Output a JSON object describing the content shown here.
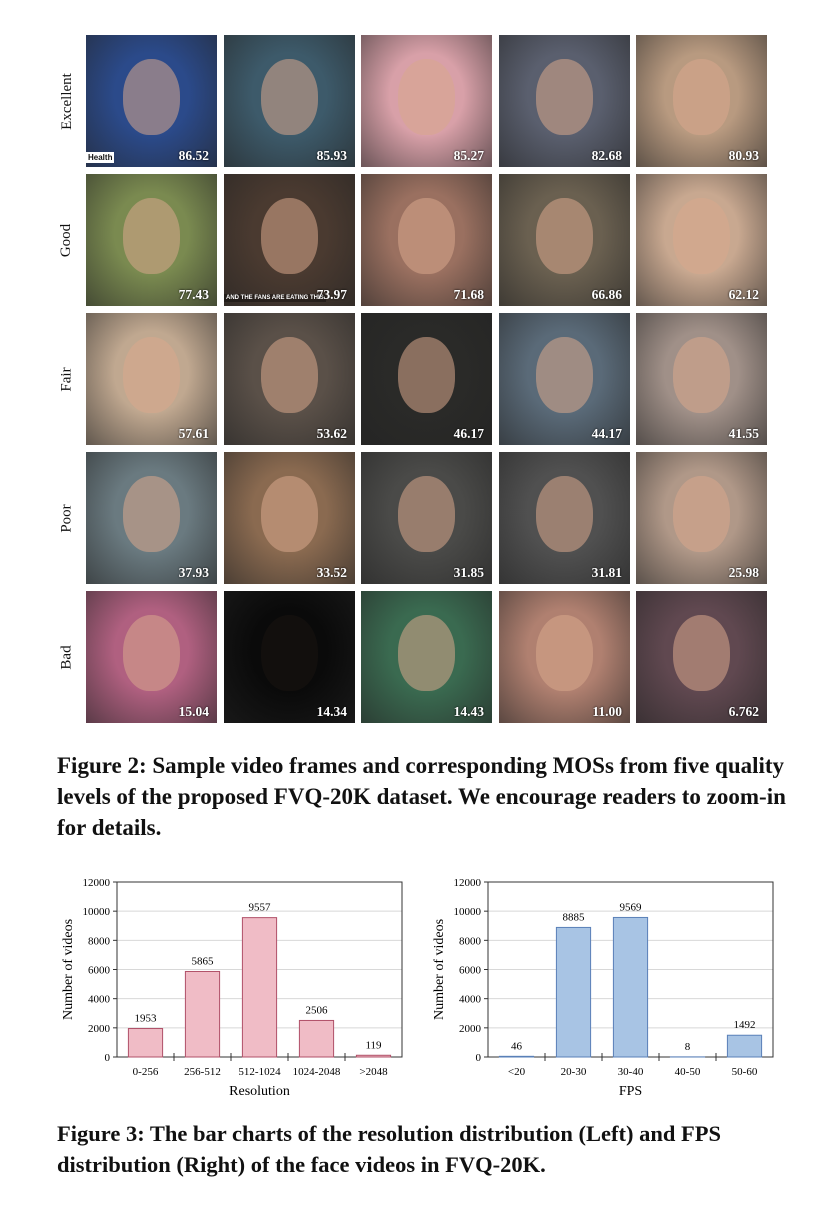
{
  "figure2": {
    "rows": [
      {
        "label": "Excellent",
        "scores": [
          "86.52",
          "85.93",
          "85.27",
          "82.68",
          "80.93"
        ],
        "colors": [
          "#2b4a8a",
          "#3d5a6a",
          "#d8a0a8",
          "#5a5f6e",
          "#b89a80"
        ]
      },
      {
        "label": "Good",
        "scores": [
          "77.43",
          "73.97",
          "71.68",
          "66.86",
          "62.12"
        ],
        "colors": [
          "#7a8a50",
          "#4a3a30",
          "#9a7060",
          "#6a6050",
          "#c8a890"
        ]
      },
      {
        "label": "Fair",
        "scores": [
          "57.61",
          "53.62",
          "46.17",
          "44.17",
          "41.55"
        ],
        "colors": [
          "#c0a890",
          "#5a5048",
          "#2a2a28",
          "#5a6a78",
          "#a09088"
        ]
      },
      {
        "label": "Poor",
        "scores": [
          "37.93",
          "33.52",
          "31.85",
          "31.81",
          "25.98"
        ],
        "colors": [
          "#6a7a80",
          "#8a6a50",
          "#4a4a48",
          "#505050",
          "#b09888"
        ]
      },
      {
        "label": "Bad",
        "scores": [
          "15.04",
          "14.34",
          "14.43",
          "11.00",
          "6.762"
        ],
        "colors": [
          "#b06080",
          "#0a0a0a",
          "#3a6a50",
          "#b08070",
          "#604850"
        ]
      }
    ],
    "overlays": {
      "health": "Health",
      "fans": "AND THE FANS ARE EATING THIS"
    },
    "caption": "Figure 2: Sample video frames and corresponding MOSs from five quality levels of the proposed FVQ-20K dataset. We encourage readers to zoom-in for details."
  },
  "chart_data": [
    {
      "type": "bar",
      "title": "",
      "xlabel": "Resolution",
      "ylabel": "Number of videos",
      "categories": [
        "0-256",
        "256-512",
        "512-1024",
        "1024-2048",
        ">2048"
      ],
      "values": [
        1953,
        5865,
        9557,
        2506,
        119
      ],
      "ylim": [
        0,
        12000
      ],
      "yticks": [
        0,
        2000,
        4000,
        6000,
        8000,
        10000,
        12000
      ],
      "grid": true,
      "fill": "#f0bcc6",
      "stroke": "#b05068"
    },
    {
      "type": "bar",
      "title": "",
      "xlabel": "FPS",
      "ylabel": "Number of videos",
      "categories": [
        "<20",
        "20-30",
        "30-40",
        "40-50",
        "50-60"
      ],
      "values": [
        46,
        8885,
        9569,
        8,
        1492
      ],
      "ylim": [
        0,
        12000
      ],
      "yticks": [
        0,
        2000,
        4000,
        6000,
        8000,
        10000,
        12000
      ],
      "grid": true,
      "fill": "#a8c4e4",
      "stroke": "#5a80b8"
    }
  ],
  "figure3": {
    "caption": "Figure 3: The bar charts of the resolution distribution (Left) and FPS distribution (Right) of the face videos in FVQ-20K."
  }
}
